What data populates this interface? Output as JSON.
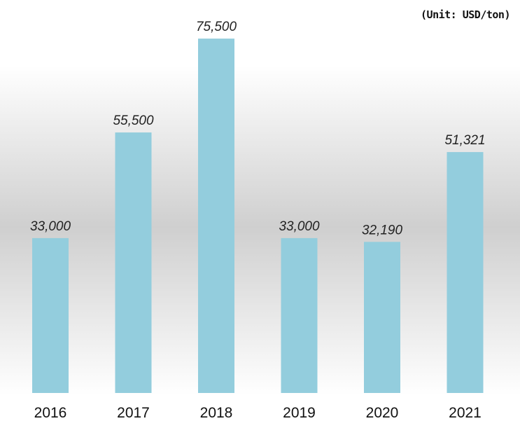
{
  "unit_label": "(Unit: USD/ton)",
  "colors": {
    "bar": "#93cddd",
    "label": "#222222",
    "background_edge": "#ffffff",
    "background_center": "#cfcfcf"
  },
  "chart_data": {
    "type": "bar",
    "categories": [
      "2016",
      "2017",
      "2018",
      "2019",
      "2020",
      "2021"
    ],
    "values": [
      33000,
      55500,
      75500,
      33000,
      32190,
      51321
    ],
    "data_labels": [
      "33,000",
      "55,500",
      "75,500",
      "33,000",
      "32,190",
      "51,321"
    ],
    "ylim": [
      0,
      80000
    ],
    "grid": false,
    "legend": "none"
  }
}
